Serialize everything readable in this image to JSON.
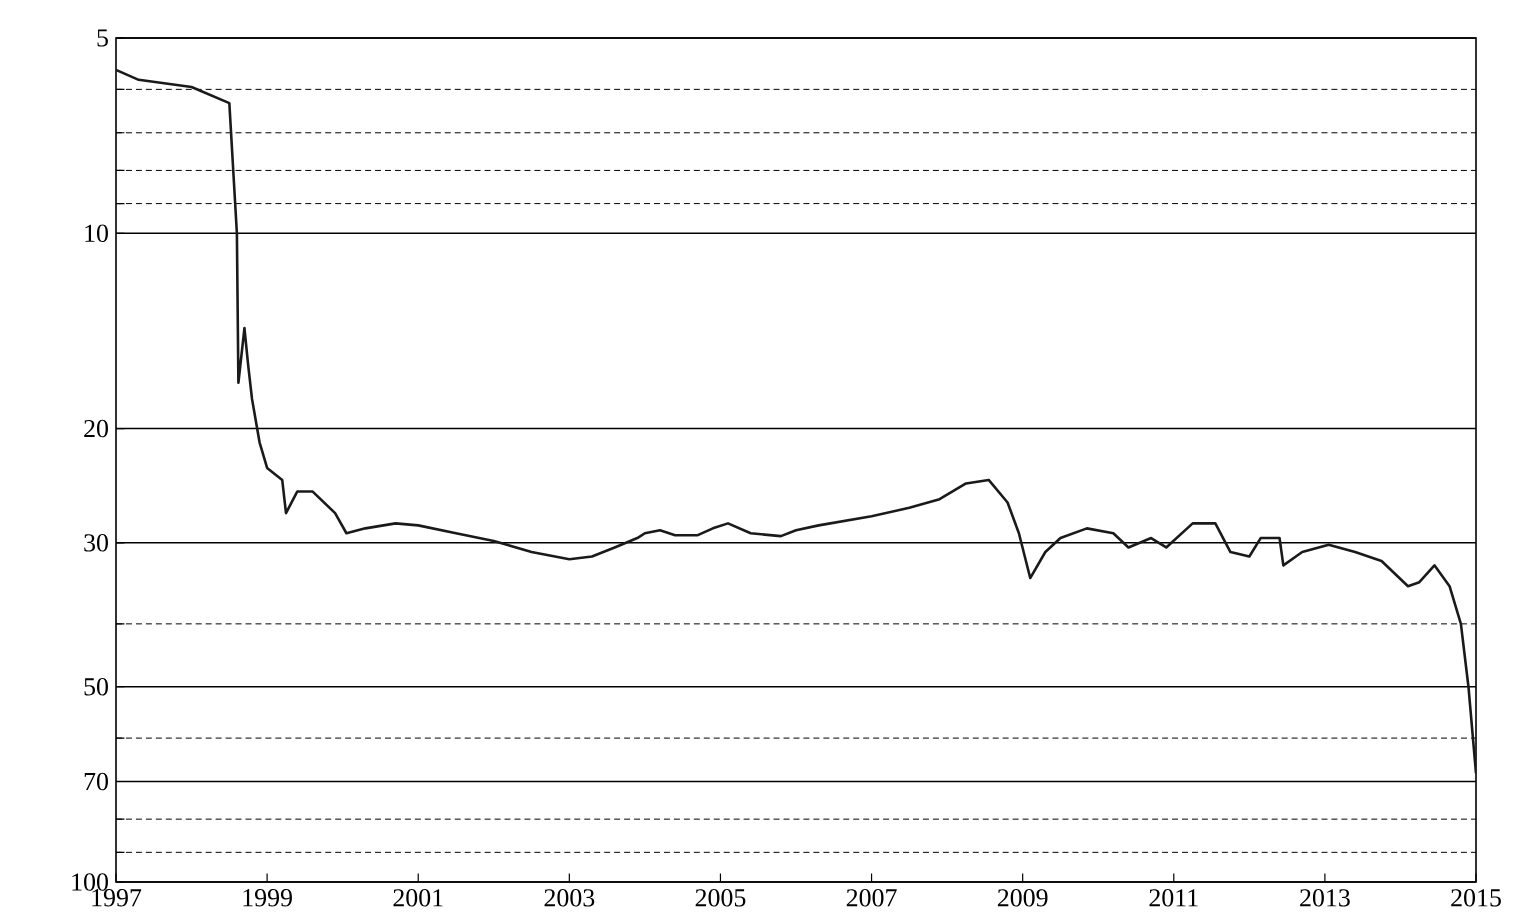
{
  "chart_data": {
    "type": "line",
    "log": "y",
    "grid": "y",
    "color": "#1a1a1a",
    "xlim": [
      1997,
      2015
    ],
    "xticks": [
      1997,
      1999,
      2001,
      2003,
      2005,
      2007,
      2009,
      2011,
      2013,
      2015
    ],
    "ylim": [
      100,
      5
    ],
    "yticks": [
      5,
      {
        "value": 6,
        "label": null
      },
      {
        "value": 7,
        "label": null
      },
      {
        "value": 8,
        "label": null
      },
      {
        "value": 9,
        "label": null
      },
      10,
      20,
      30,
      {
        "value": 40,
        "label": null
      },
      50,
      {
        "value": 60,
        "label": null
      },
      70,
      {
        "value": 80,
        "label": null
      },
      {
        "value": 90,
        "label": null
      },
      100
    ],
    "x": [
      1997.0,
      1997.3,
      1998.0,
      1998.5,
      1998.6,
      1998.62,
      1998.7,
      1998.75,
      1998.8,
      1998.9,
      1999.0,
      1999.2,
      1999.25,
      1999.4,
      1999.6,
      1999.9,
      2000.05,
      2000.3,
      2000.7,
      2001.0,
      2001.5,
      2002.0,
      2002.5,
      2003.0,
      2003.3,
      2003.6,
      2003.9,
      2004.0,
      2004.2,
      2004.4,
      2004.7,
      2004.9,
      2005.1,
      2005.4,
      2005.8,
      2006.0,
      2006.3,
      2007.0,
      2007.5,
      2007.9,
      2008.25,
      2008.55,
      2008.8,
      2008.95,
      2009.1,
      2009.3,
      2009.5,
      2009.85,
      2010.2,
      2010.4,
      2010.7,
      2010.9,
      2011.25,
      2011.55,
      2011.75,
      2012.0,
      2012.15,
      2012.4,
      2012.45,
      2012.7,
      2013.05,
      2013.4,
      2013.75,
      2014.1,
      2014.25,
      2014.45,
      2014.65,
      2014.8,
      2014.9,
      2015.0
    ],
    "values": [
      5.6,
      5.8,
      5.95,
      6.3,
      10,
      17,
      14,
      16,
      18,
      21,
      23,
      24,
      27,
      25,
      25,
      27,
      29,
      28.5,
      28,
      28.2,
      29,
      29.8,
      31,
      31.8,
      31.5,
      30.5,
      29.5,
      29,
      28.7,
      29.2,
      29.2,
      28.5,
      28,
      29,
      29.3,
      28.7,
      28.2,
      27.3,
      26.5,
      25.7,
      24.3,
      24,
      26,
      29,
      34,
      31,
      29.5,
      28.5,
      29,
      30.5,
      29.5,
      30.5,
      28,
      28,
      31,
      31.5,
      29.5,
      29.5,
      32.5,
      31,
      30.2,
      31,
      32,
      35,
      34.5,
      32.5,
      35,
      40,
      50,
      68
    ]
  }
}
